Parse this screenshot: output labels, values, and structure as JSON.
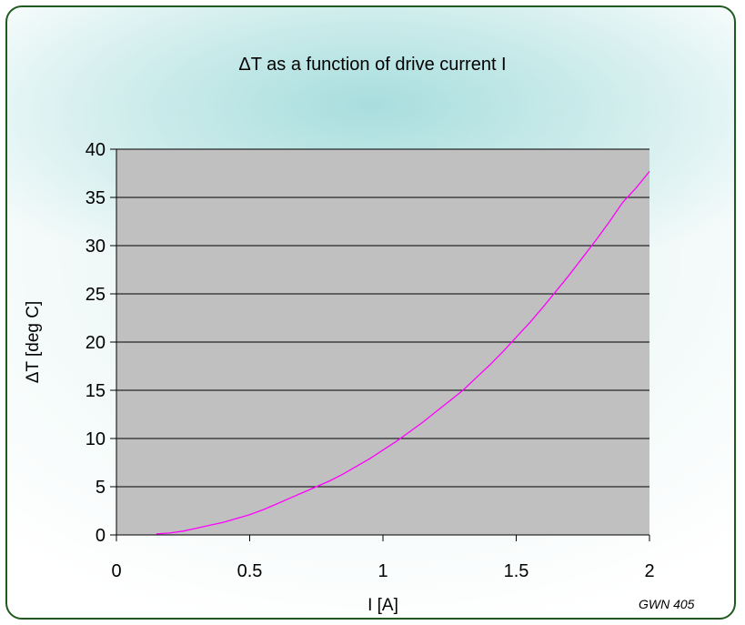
{
  "chart_data": {
    "type": "line",
    "title": "ΔT as a function of drive current I",
    "xlabel": "I [A]",
    "ylabel": "ΔT [deg C]",
    "xlim": [
      0,
      2
    ],
    "ylim": [
      0,
      40
    ],
    "xticks": [
      0,
      0.5,
      1,
      1.5,
      2
    ],
    "xtick_labels": [
      "0",
      "0.5",
      "1",
      "1.5",
      "2"
    ],
    "yticks": [
      0,
      5,
      10,
      15,
      20,
      25,
      30,
      35,
      40
    ],
    "ytick_labels": [
      "0",
      "5",
      "10",
      "15",
      "20",
      "25",
      "30",
      "35",
      "40"
    ],
    "grid": "horizontal",
    "legend": "none",
    "series": [
      {
        "color": "#ff00ff",
        "x": [
          0.15,
          0.2,
          0.25,
          0.3,
          0.35,
          0.4,
          0.45,
          0.5,
          0.55,
          0.6,
          0.65,
          0.7,
          0.75,
          0.8,
          0.85,
          0.9,
          0.95,
          1.0,
          1.05,
          1.1,
          1.15,
          1.2,
          1.25,
          1.3,
          1.35,
          1.4,
          1.45,
          1.5,
          1.55,
          1.6,
          1.65,
          1.7,
          1.75,
          1.8,
          1.85,
          1.9,
          1.95,
          2.0
        ],
        "y": [
          0.1,
          0.2,
          0.4,
          0.7,
          1.0,
          1.3,
          1.7,
          2.1,
          2.6,
          3.2,
          3.8,
          4.4,
          5.0,
          5.6,
          6.3,
          7.1,
          7.9,
          8.8,
          9.7,
          10.7,
          11.7,
          12.8,
          13.9,
          15.0,
          16.3,
          17.6,
          19.0,
          20.5,
          22.0,
          23.6,
          25.3,
          27.0,
          28.8,
          30.6,
          32.5,
          34.5,
          36.0,
          37.7
        ]
      }
    ],
    "plot_background": "#c0c0c0",
    "gridline_color": "#000000"
  },
  "credit": "GWN 405"
}
